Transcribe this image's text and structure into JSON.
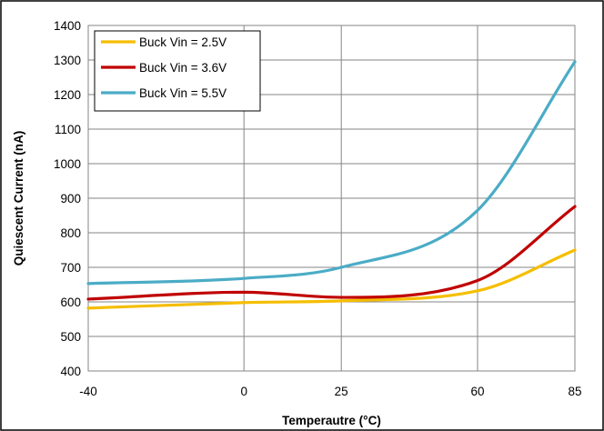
{
  "chart_data": {
    "type": "line",
    "title": "",
    "xlabel": "Temperautre (°C)",
    "ylabel": "Quiescent Current (nA)",
    "xlim": [
      -40,
      85
    ],
    "ylim": [
      400,
      1400
    ],
    "xticks": [
      -40,
      0,
      25,
      60,
      85
    ],
    "yticks": [
      400,
      500,
      600,
      700,
      800,
      900,
      1000,
      1100,
      1200,
      1300,
      1400
    ],
    "grid": true,
    "legend_position": "top-left",
    "series": [
      {
        "name": "Buck Vin = 2.5V",
        "color": "#F5BE00",
        "x": [
          -40,
          0,
          25,
          60,
          85
        ],
        "y": [
          582,
          598,
          603,
          632,
          750
        ]
      },
      {
        "name": "Buck Vin = 3.6V",
        "color": "#C00000",
        "x": [
          -40,
          0,
          25,
          60,
          85
        ],
        "y": [
          608,
          628,
          613,
          662,
          876
        ]
      },
      {
        "name": "Buck Vin = 5.5V",
        "color": "#4BACC6",
        "x": [
          -40,
          0,
          25,
          60,
          85
        ],
        "y": [
          653,
          668,
          700,
          865,
          1295
        ]
      }
    ]
  }
}
